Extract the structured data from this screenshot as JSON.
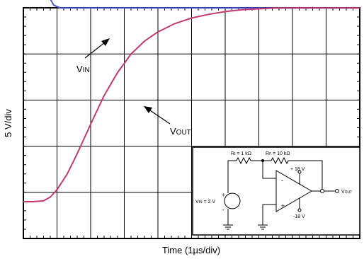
{
  "chart_data": {
    "type": "line",
    "xlabel": "Time (1µs/div)",
    "ylabel": "5 V/div",
    "x_units_per_div": 1,
    "y_units_per_div": 5,
    "divisions": {
      "x": 10,
      "y": 5
    },
    "grid": true,
    "series": [
      {
        "name": "VIN",
        "color": "#4a57d6",
        "x": [
          0.0,
          0.6,
          0.68,
          0.78,
          0.9,
          1.1,
          2.0,
          4.0,
          6.0,
          8.0,
          10.0
        ],
        "y": [
          23.1,
          23.1,
          22.8,
          21.1,
          20.3,
          20.0,
          20.0,
          20.0,
          20.0,
          20.0,
          20.0
        ]
      },
      {
        "name": "VOUT",
        "color": "#c43a6f",
        "x": [
          0.0,
          0.3,
          0.6,
          0.8,
          1.0,
          1.3,
          1.6,
          2.0,
          2.4,
          2.8,
          3.2,
          3.6,
          4.0,
          4.5,
          5.0,
          5.5,
          6.0,
          6.5,
          7.0,
          7.5,
          8.0,
          9.0,
          10.0
        ],
        "y": [
          -1.0,
          -1.0,
          -0.9,
          -0.5,
          0.3,
          2.0,
          4.2,
          7.4,
          10.5,
          13.0,
          15.0,
          16.4,
          17.4,
          18.3,
          18.9,
          19.3,
          19.6,
          19.8,
          19.9,
          20.0,
          20.0,
          20.0,
          20.0
        ]
      }
    ],
    "annotations": [
      {
        "text": "V",
        "sub": "IN",
        "series": "VIN"
      },
      {
        "text": "V",
        "sub": "OUT",
        "series": "VOUT"
      }
    ]
  },
  "inset": {
    "ri_label": "Rᵢ = 1 kΩ",
    "rf_label": "Rѣ = 10 kΩ",
    "rf_label_plain": "R",
    "rf_sub": "F",
    "rf_value": " = 10 kΩ",
    "ri_label_plain": "R",
    "ri_sub": "I",
    "ri_value": " = 1 kΩ",
    "vin_label": "V",
    "vin_sub": "IN",
    "vin_value": " = 2 V",
    "vout_label": "V",
    "vout_sub": "OUT",
    "pos_supply": "+ 18 V",
    "neg_supply": "-18 V",
    "plus": "+",
    "minus": "-"
  }
}
